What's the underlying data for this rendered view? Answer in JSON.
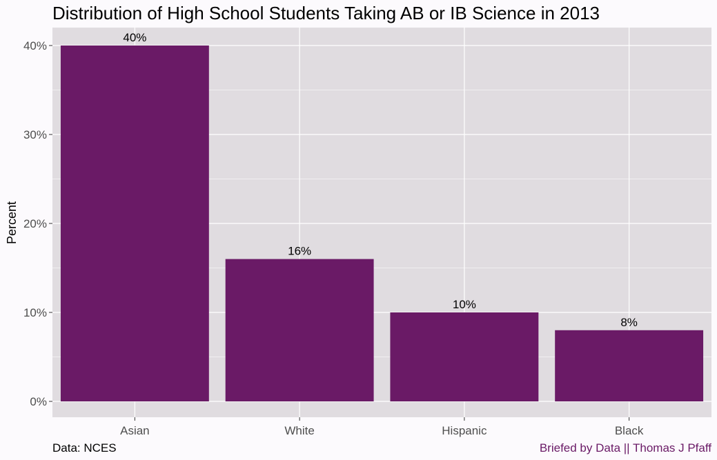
{
  "chart_data": {
    "type": "bar",
    "title": "Distribution of High School Students Taking AB or IB Science in 2013",
    "xlabel": "",
    "ylabel": "Percent",
    "categories": [
      "Asian",
      "White",
      "Hispanic",
      "Black"
    ],
    "values": [
      40,
      16,
      10,
      8
    ],
    "data_labels": [
      "40%",
      "16%",
      "10%",
      "8%"
    ],
    "ylim": [
      0,
      42
    ],
    "yticks": [
      0,
      10,
      20,
      30,
      40
    ],
    "ytick_labels": [
      "0%",
      "10%",
      "20%",
      "30%",
      "40%"
    ],
    "grid": true,
    "legend": "none",
    "bar_color": "#6a1a66",
    "panel_background": "#e0dce0",
    "grid_color": "#ffffff"
  },
  "caption": {
    "source": "Data: NCES",
    "credit": "Briefed by Data || Thomas J Pfaff"
  }
}
